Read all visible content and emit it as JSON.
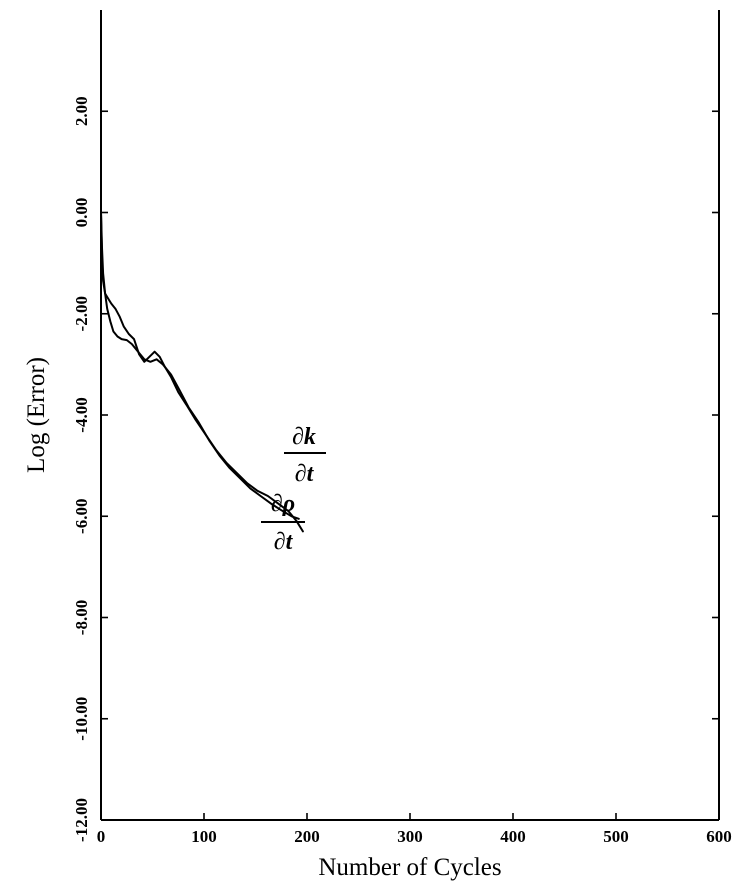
{
  "chart_data": {
    "type": "line",
    "title": "",
    "xlabel": "Number of Cycles",
    "ylabel": "Log (Error)",
    "xlim": [
      0,
      600
    ],
    "ylim": [
      -12,
      4
    ],
    "grid": false,
    "x_ticks": [
      {
        "value": 0,
        "label": "0"
      },
      {
        "value": 100,
        "label": "100"
      },
      {
        "value": 200,
        "label": "200"
      },
      {
        "value": 300,
        "label": "300"
      },
      {
        "value": 400,
        "label": "400"
      },
      {
        "value": 500,
        "label": "500"
      },
      {
        "value": 600,
        "label": "600"
      }
    ],
    "y_ticks": [
      {
        "value": -12,
        "label": "-12.00"
      },
      {
        "value": -10,
        "label": "-10.00"
      },
      {
        "value": -8,
        "label": "-8.00"
      },
      {
        "value": -6,
        "label": "-6.00"
      },
      {
        "value": -4,
        "label": "-4.00"
      },
      {
        "value": -2,
        "label": "-2.00"
      },
      {
        "value": 0,
        "label": "0.00"
      },
      {
        "value": 2,
        "label": "2.00"
      }
    ],
    "series": [
      {
        "x": [
          0,
          1,
          2,
          4,
          6,
          9,
          12,
          16,
          20,
          25,
          30,
          36,
          42,
          48,
          54,
          60,
          68,
          76,
          85,
          95,
          105,
          115,
          125,
          135,
          145,
          155,
          165,
          175,
          185,
          192
        ],
        "y": [
          0.0,
          -0.7,
          -1.2,
          -1.6,
          -1.9,
          -2.15,
          -2.35,
          -2.45,
          -2.5,
          -2.52,
          -2.6,
          -2.75,
          -2.9,
          -2.95,
          -2.9,
          -3.0,
          -3.2,
          -3.5,
          -3.85,
          -4.15,
          -4.5,
          -4.8,
          -5.05,
          -5.25,
          -5.45,
          -5.6,
          -5.75,
          -5.88,
          -6.0,
          -6.05
        ]
      },
      {
        "x": [
          0,
          1,
          2,
          4,
          7,
          10,
          14,
          18,
          22,
          27,
          32,
          37,
          42,
          47,
          52,
          57,
          62,
          68,
          75,
          83,
          92,
          102,
          112,
          122,
          132,
          142,
          152,
          162,
          172,
          182,
          190,
          196
        ],
        "y": [
          0.0,
          -0.9,
          -1.35,
          -1.6,
          -1.7,
          -1.8,
          -1.9,
          -2.05,
          -2.25,
          -2.4,
          -2.5,
          -2.8,
          -2.95,
          -2.85,
          -2.75,
          -2.85,
          -3.05,
          -3.25,
          -3.55,
          -3.8,
          -4.1,
          -4.4,
          -4.7,
          -4.95,
          -5.15,
          -5.35,
          -5.5,
          -5.6,
          -5.75,
          -5.9,
          -6.1,
          -6.3
        ]
      }
    ],
    "annotations": [
      {
        "numerator": "∂k",
        "denominator": "∂t"
      },
      {
        "numerator": "∂ρ",
        "denominator": "∂t"
      }
    ]
  }
}
